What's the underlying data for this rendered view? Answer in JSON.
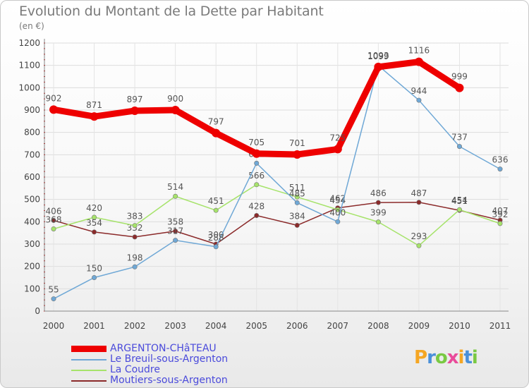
{
  "title": "Evolution du Montant de la Dette par Habitant",
  "unit": "(en €)",
  "brand": "Proxiti",
  "brand_colors": [
    "#f5a623",
    "#4a90d9",
    "#7ac943",
    "#e94b9a",
    "#f5a623",
    "#4a90d9",
    "#7ac943"
  ],
  "chart_data": {
    "type": "line",
    "x": [
      "2000",
      "2001",
      "2002",
      "2003",
      "2004",
      "2005",
      "2006",
      "2007",
      "2008",
      "2009",
      "2010",
      "2011"
    ],
    "ylim": [
      0,
      1200
    ],
    "yticks": [
      0,
      100,
      200,
      300,
      400,
      500,
      600,
      700,
      800,
      900,
      1000,
      1100,
      1200
    ],
    "grid": true,
    "legend_position": "bottom-left",
    "series": [
      {
        "name": "ARGENTON-CHâTEAU",
        "color": "#ee0000",
        "values": [
          902,
          871,
          897,
          900,
          797,
          705,
          701,
          725,
          1093,
          1116,
          999,
          null
        ]
      },
      {
        "name": "Le Breuil-sous-Argenton",
        "color": "#6fa8d6",
        "values": [
          55,
          150,
          198,
          317,
          288,
          662,
          485,
          400,
          1099,
          944,
          737,
          636
        ]
      },
      {
        "name": "La Coudre",
        "color": "#a6e36a",
        "values": [
          368,
          420,
          383,
          514,
          451,
          566,
          511,
          454,
          399,
          293,
          454,
          392
        ]
      },
      {
        "name": "Moutiers-sous-Argenton",
        "color": "#8b2a2a",
        "values": [
          406,
          354,
          332,
          358,
          300,
          428,
          384,
          462,
          486,
          487,
          451,
          407
        ]
      }
    ]
  }
}
